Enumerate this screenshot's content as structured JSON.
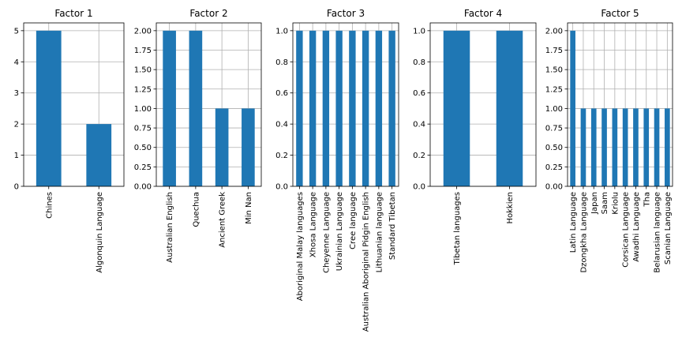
{
  "chart_data": [
    {
      "type": "bar",
      "title": "Factor 1",
      "categories": [
        "Chines",
        "Algonquin Language"
      ],
      "values": [
        5,
        2
      ],
      "ylim": [
        0,
        5.25
      ],
      "yticks": [
        0,
        1,
        2,
        3,
        4,
        5
      ],
      "ytick_labels": [
        "0",
        "1",
        "2",
        "3",
        "4",
        "5"
      ],
      "grid": true,
      "color": "#1f77b4"
    },
    {
      "type": "bar",
      "title": "Factor 2",
      "categories": [
        "Australian English",
        "Quechua",
        "Ancient Greek",
        "Min Nan"
      ],
      "values": [
        2,
        2,
        1,
        1
      ],
      "ylim": [
        0,
        2.1
      ],
      "yticks": [
        0,
        0.25,
        0.5,
        0.75,
        1.0,
        1.25,
        1.5,
        1.75,
        2.0
      ],
      "ytick_labels": [
        "0.00",
        "0.25",
        "0.50",
        "0.75",
        "1.00",
        "1.25",
        "1.50",
        "1.75",
        "2.00"
      ],
      "grid": true,
      "color": "#1f77b4"
    },
    {
      "type": "bar",
      "title": "Factor 3",
      "categories": [
        "Aboriginal Malay languages",
        "Xhosa Language",
        "Cheyenne Language",
        "Ukrainian Language",
        "Cree language",
        "Australian Aboriginal Pidgin English",
        "Lithuanian language",
        "Standard Tibetan"
      ],
      "values": [
        1,
        1,
        1,
        1,
        1,
        1,
        1,
        1
      ],
      "ylim": [
        0,
        1.05
      ],
      "yticks": [
        0,
        0.2,
        0.4,
        0.6,
        0.8,
        1.0
      ],
      "ytick_labels": [
        "0.0",
        "0.2",
        "0.4",
        "0.6",
        "0.8",
        "1.0"
      ],
      "grid": true,
      "color": "#1f77b4"
    },
    {
      "type": "bar",
      "title": "Factor 4",
      "categories": [
        "Tibetan languages",
        "Hokkien"
      ],
      "values": [
        1,
        1
      ],
      "ylim": [
        0,
        1.05
      ],
      "yticks": [
        0,
        0.2,
        0.4,
        0.6,
        0.8,
        1.0
      ],
      "ytick_labels": [
        "0.0",
        "0.2",
        "0.4",
        "0.6",
        "0.8",
        "1.0"
      ],
      "grid": true,
      "color": "#1f77b4"
    },
    {
      "type": "bar",
      "title": "Factor 5",
      "categories": [
        "Latin Language",
        "Dzongkha Language",
        "Japan",
        "Saam",
        "Kriolu",
        "Corsican Language",
        "Awadhi Language",
        "Tha",
        "Belarusian language",
        "Scanian Language"
      ],
      "values": [
        2,
        1,
        1,
        1,
        1,
        1,
        1,
        1,
        1,
        1
      ],
      "ylim": [
        0,
        2.1
      ],
      "yticks": [
        0,
        0.25,
        0.5,
        0.75,
        1.0,
        1.25,
        1.5,
        1.75,
        2.0
      ],
      "ytick_labels": [
        "0.00",
        "0.25",
        "0.50",
        "0.75",
        "1.00",
        "1.25",
        "1.50",
        "1.75",
        "2.00"
      ],
      "grid": true,
      "color": "#1f77b4"
    }
  ]
}
